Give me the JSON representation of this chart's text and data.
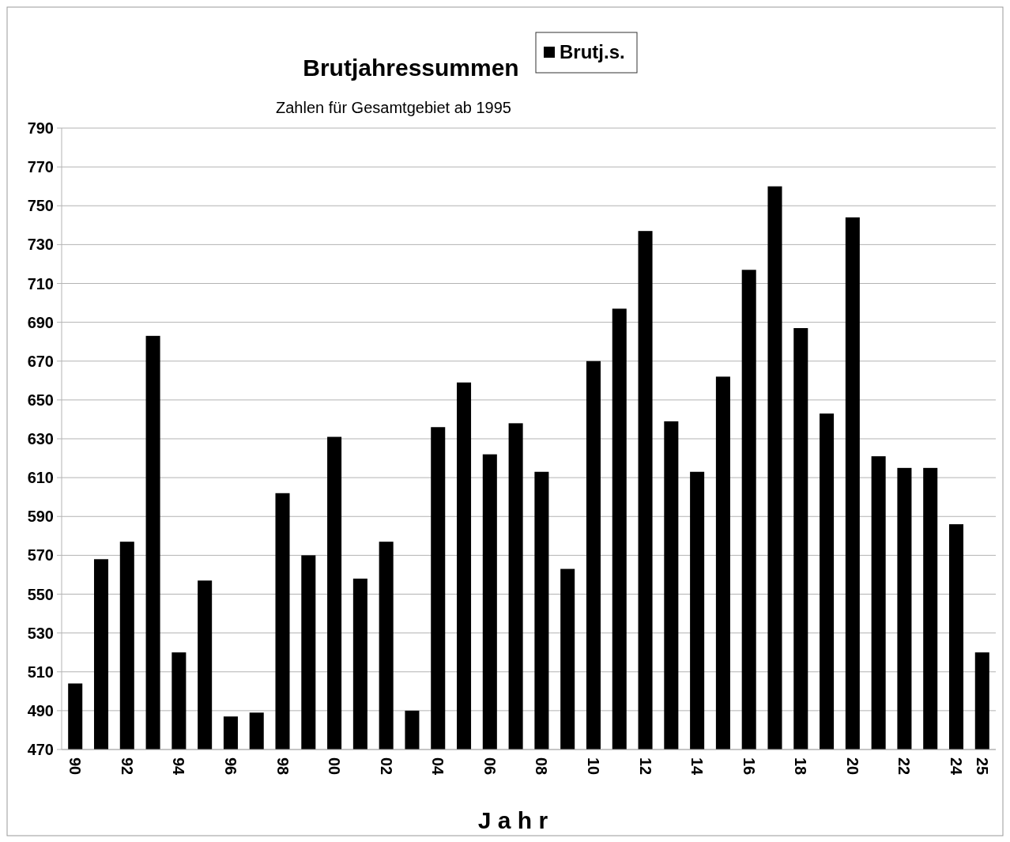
{
  "chart_data": {
    "type": "bar",
    "title": "Brutjahressummen",
    "subtitle": "Zahlen für Gesamtgebiet ab 1995",
    "xlabel": "J a h r",
    "categories": [
      "90",
      null,
      "92",
      null,
      "94",
      null,
      "96",
      null,
      "98",
      null,
      "00",
      null,
      "02",
      null,
      "04",
      null,
      "06",
      null,
      "08",
      null,
      "10",
      null,
      "12",
      null,
      "14",
      null,
      "16",
      null,
      "18",
      null,
      "20",
      null,
      "22",
      null,
      "24",
      "25"
    ],
    "series": [
      {
        "name": "Brutj.s.",
        "color": "#000000",
        "values": [
          504,
          568,
          577,
          683,
          520,
          557,
          487,
          489,
          602,
          570,
          631,
          558,
          577,
          490,
          636,
          659,
          622,
          638,
          613,
          563,
          670,
          697,
          737,
          639,
          613,
          662,
          717,
          760,
          687,
          643,
          744,
          621,
          615,
          615,
          586,
          520
        ]
      }
    ],
    "ylim": [
      470,
      790
    ],
    "yticks": [
      470,
      490,
      510,
      530,
      550,
      570,
      590,
      610,
      630,
      650,
      670,
      690,
      710,
      730,
      750,
      770,
      790
    ],
    "grid": "y",
    "legend": "top"
  }
}
